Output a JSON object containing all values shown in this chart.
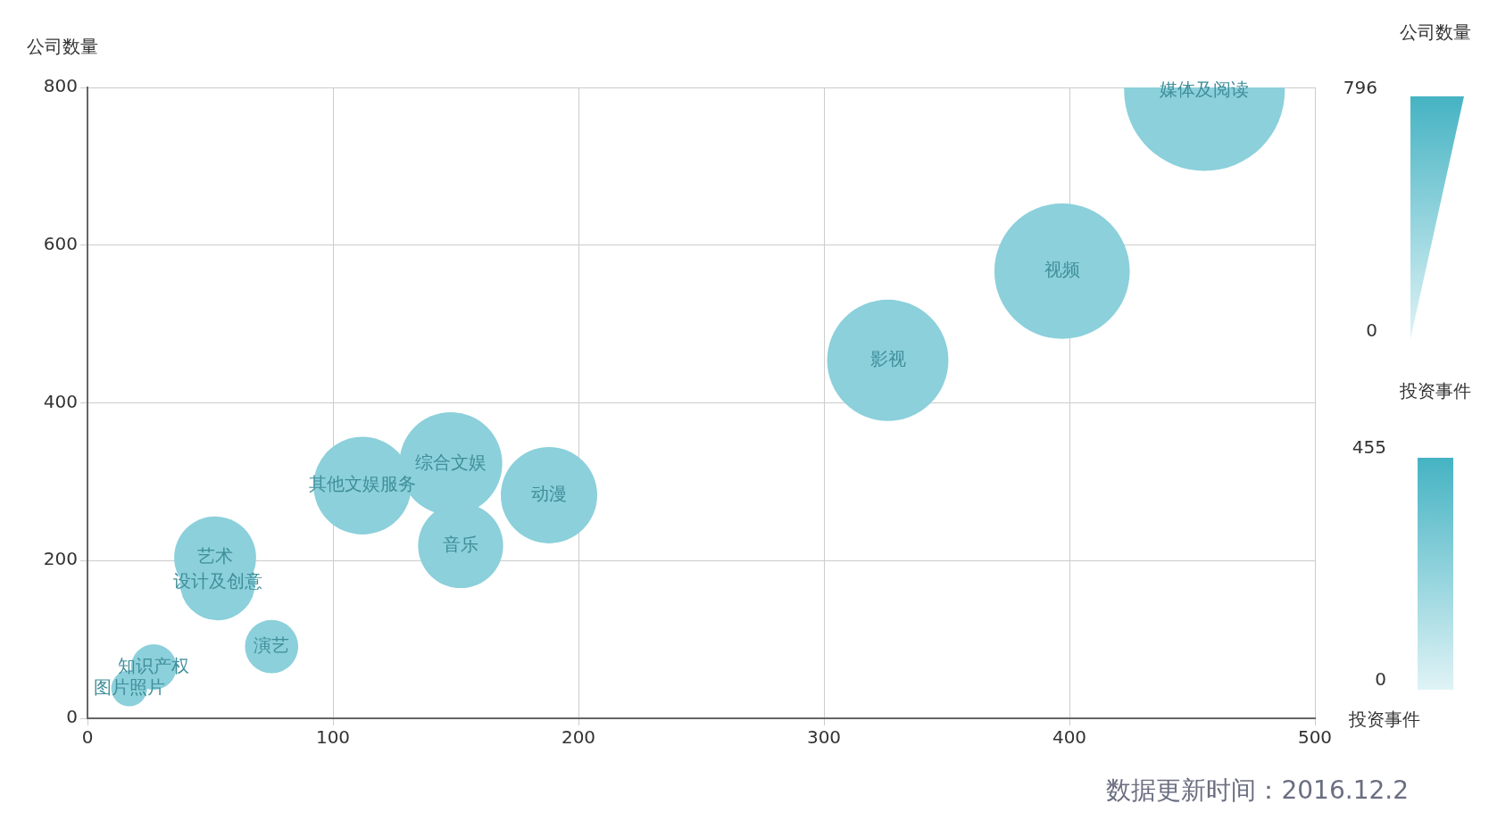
{
  "chart_data": {
    "type": "bubble",
    "ylabel": "公司数量",
    "xlabel": "投资事件",
    "legend_title": "公司数量",
    "clabel": "投资事件",
    "clim": [
      0,
      455
    ],
    "cticks": [
      0,
      455
    ],
    "series": [
      {
        "name": "媒体及阅读",
        "color": "#8bd0db",
        "x": [
          455
        ],
        "values": [
          796
        ],
        "sizes": [
          1
        ]
      },
      {
        "name": "视频",
        "color": "#8bd0db",
        "x": [
          397
        ],
        "values": [
          567
        ],
        "sizes": [
          0.71
        ]
      },
      {
        "name": "影视",
        "color": "#8bd0db",
        "x": [
          326
        ],
        "values": [
          454
        ],
        "sizes": [
          0.57
        ]
      },
      {
        "name": "综合文娱",
        "color": "#8bd0db",
        "x": [
          148
        ],
        "values": [
          323
        ],
        "sizes": [
          0.41
        ]
      },
      {
        "name": "其他文娱服务",
        "color": "#8bd0db",
        "x": [
          112
        ],
        "values": [
          295
        ],
        "sizes": [
          0.37
        ]
      },
      {
        "name": "动漫",
        "color": "#8bd0db",
        "x": [
          188
        ],
        "values": [
          283
        ],
        "sizes": [
          0.36
        ]
      },
      {
        "name": "音乐",
        "color": "#8bd0db",
        "x": [
          152
        ],
        "values": [
          219
        ],
        "sizes": [
          0.28
        ]
      },
      {
        "name": "艺术",
        "color": "#8bd0db",
        "x": [
          52
        ],
        "values": [
          204
        ],
        "sizes": [
          0.26
        ]
      },
      {
        "name": "设计及创意",
        "color": "#8bd0db",
        "x": [
          53
        ],
        "values": [
          172
        ],
        "sizes": [
          0.22
        ]
      },
      {
        "name": "演艺",
        "color": "#8bd0db",
        "x": [
          75
        ],
        "values": [
          91
        ],
        "sizes": [
          0.11
        ]
      },
      {
        "name": "知识产权",
        "color": "#8bd0db",
        "x": [
          27
        ],
        "values": [
          65
        ],
        "sizes": [
          0.08
        ]
      },
      {
        "name": "图片照片",
        "color": "#8bd0db",
        "x": [
          17
        ],
        "values": [
          38
        ],
        "sizes": [
          0.05
        ]
      }
    ],
    "xlim": [
      0,
      500
    ],
    "xticks": [
      0,
      100,
      200,
      300,
      400,
      500
    ],
    "ylim": [
      0,
      800
    ],
    "yticks": [
      0,
      200,
      400,
      600,
      800
    ],
    "grid": true,
    "annotations": [
      "796",
      "0",
      "数据更新时间：2016.12.2"
    ]
  }
}
